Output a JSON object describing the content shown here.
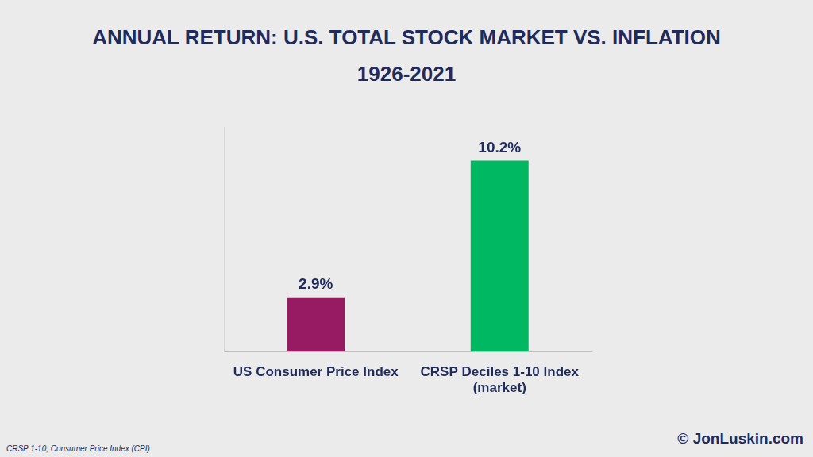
{
  "chart_data": {
    "type": "bar",
    "title": [
      "ANNUAL RETURN: U.S. TOTAL STOCK MARKET VS. INFLATION",
      "1926-2021"
    ],
    "categories": [
      "US Consumer Price Index",
      "CRSP Deciles 1-10 Index (market)"
    ],
    "values": [
      2.9,
      10.2
    ],
    "value_labels": [
      "2.9%",
      "10.2%"
    ],
    "colors": [
      "#961b62",
      "#00b862"
    ],
    "ylim": [
      0,
      12
    ],
    "grid": false,
    "data_labels": true,
    "tick_labels": "x"
  },
  "source": "CRSP 1-10; Consumer Price Index (CPI)",
  "credit": "© JonLuskin.com"
}
